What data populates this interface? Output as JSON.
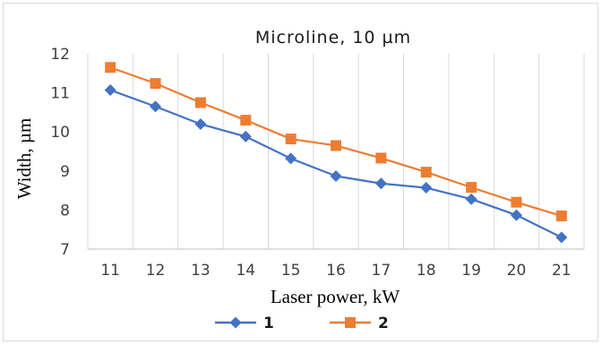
{
  "chart_data": {
    "type": "line",
    "title": "Microline, 10 µm",
    "xlabel": "Laser power, kW",
    "ylabel": "Width, µm",
    "x": [
      11,
      12,
      13,
      14,
      15,
      16,
      17,
      18,
      19,
      20,
      21
    ],
    "x_tick_labels": [
      "11",
      "12",
      "13",
      "14",
      "15",
      "16",
      "17",
      "18",
      "19",
      "20",
      "21"
    ],
    "ylim": [
      7,
      12
    ],
    "y_ticks": [
      7,
      8,
      9,
      10,
      11,
      12
    ],
    "y_tick_labels": [
      "7",
      "8",
      "9",
      "10",
      "11",
      "12"
    ],
    "grid": "vertical",
    "legend_position": "bottom",
    "series": [
      {
        "name": "1",
        "color": "#4472c4",
        "marker": "diamond",
        "values": [
          11.07,
          10.65,
          10.2,
          9.88,
          9.32,
          8.87,
          8.68,
          8.57,
          8.28,
          7.87,
          7.3
        ]
      },
      {
        "name": "2",
        "color": "#ed7d31",
        "marker": "square",
        "values": [
          11.65,
          11.24,
          10.75,
          10.3,
          9.82,
          9.65,
          9.33,
          8.97,
          8.58,
          8.2,
          7.85
        ]
      }
    ]
  }
}
